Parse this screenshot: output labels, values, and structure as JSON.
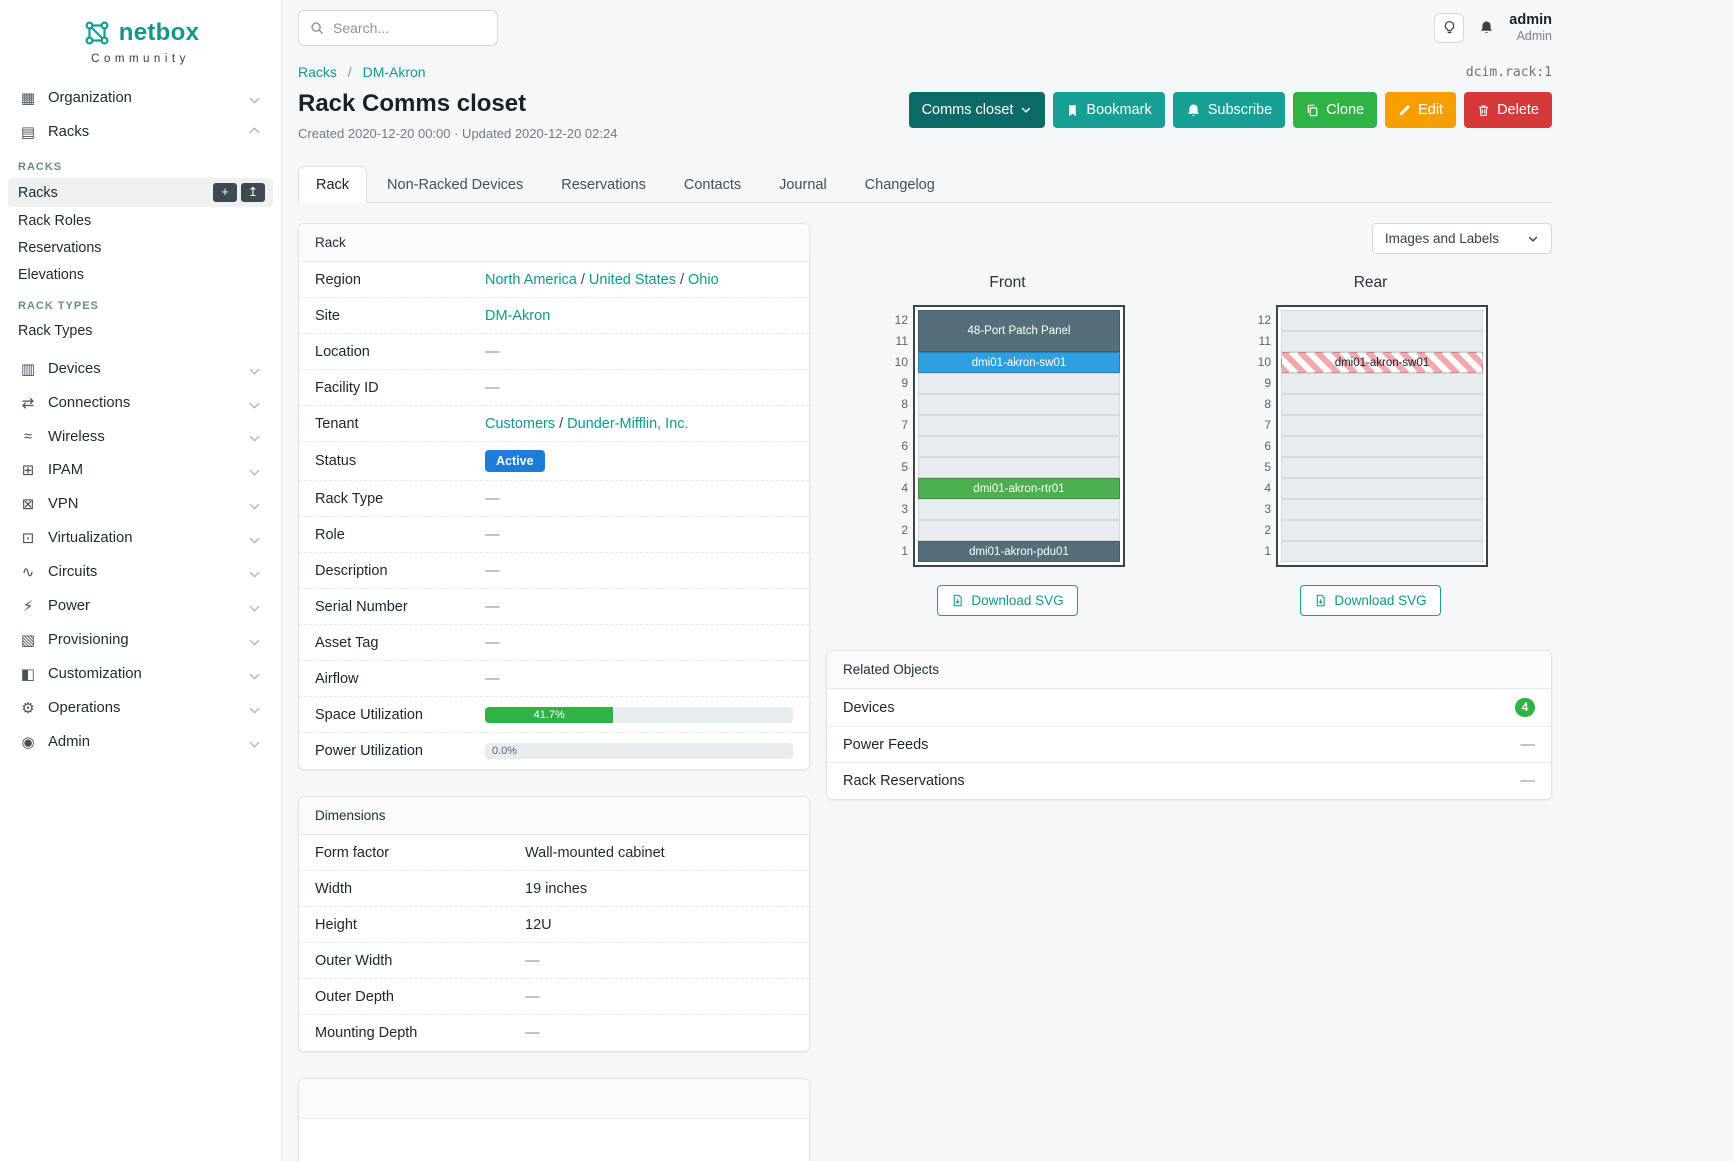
{
  "dash": "—",
  "colors": {
    "teal": "#169f94",
    "teal_dark": "#0c6b66",
    "green": "#2fb344",
    "orange": "#f59f00",
    "red": "#d63939",
    "blue": "#1c7cd6",
    "link": "#12978c",
    "stripe": "#f2a9ad"
  },
  "brand": {
    "name": "netbox",
    "community": "Community"
  },
  "topbar": {
    "search_placeholder": "Search...",
    "user": {
      "name": "admin",
      "role": "Admin"
    }
  },
  "sidebar": {
    "add_glyph": "+",
    "import_glyph": "↥",
    "items": [
      {
        "label": "Organization",
        "icon": "organization-icon",
        "glyph": "▦"
      },
      {
        "label": "Racks",
        "icon": "racks-icon",
        "glyph": "▤",
        "expanded": true,
        "children": [
          {
            "group": "RACKS"
          },
          {
            "label": "Racks",
            "active": true
          },
          {
            "label": "Rack Roles"
          },
          {
            "label": "Reservations"
          },
          {
            "label": "Elevations"
          },
          {
            "group": "RACK TYPES"
          },
          {
            "label": "Rack Types"
          }
        ]
      },
      {
        "label": "Devices",
        "icon": "devices-icon",
        "glyph": "▥"
      },
      {
        "label": "Connections",
        "icon": "connections-icon",
        "glyph": "⇄"
      },
      {
        "label": "Wireless",
        "icon": "wireless-icon",
        "glyph": "≈"
      },
      {
        "label": "IPAM",
        "icon": "ipam-icon",
        "glyph": "⊞"
      },
      {
        "label": "VPN",
        "icon": "vpn-icon",
        "glyph": "⊠"
      },
      {
        "label": "Virtualization",
        "icon": "virtualization-icon",
        "glyph": "⊡"
      },
      {
        "label": "Circuits",
        "icon": "circuits-icon",
        "glyph": "∿"
      },
      {
        "label": "Power",
        "icon": "power-icon",
        "glyph": "⚡"
      },
      {
        "label": "Provisioning",
        "icon": "provisioning-icon",
        "glyph": "▧"
      },
      {
        "label": "Customization",
        "icon": "customization-icon",
        "glyph": "◧"
      },
      {
        "label": "Operations",
        "icon": "operations-icon",
        "glyph": "⚙"
      },
      {
        "label": "Admin",
        "icon": "admin-icon",
        "glyph": "◉"
      }
    ]
  },
  "page": {
    "separator": "/",
    "breadcrumb": [
      "Racks",
      "DM-Akron"
    ],
    "object_id": "dcim.rack:1",
    "title": "Rack Comms closet",
    "meta": "Created 2020-12-20 00:00 · Updated 2020-12-20 02:24",
    "actions": [
      {
        "label": "Comms closet",
        "style": "dark-teal",
        "caret": true
      },
      {
        "label": "Bookmark",
        "style": "teal",
        "icon": "bookmark-icon"
      },
      {
        "label": "Subscribe",
        "style": "teal",
        "icon": "bell-icon"
      },
      {
        "label": "Clone",
        "style": "green",
        "icon": "copy-icon"
      },
      {
        "label": "Edit",
        "style": "orange",
        "icon": "pencil-icon"
      },
      {
        "label": "Delete",
        "style": "red",
        "icon": "trash-icon"
      }
    ],
    "tabs": [
      {
        "label": "Rack",
        "active": true
      },
      {
        "label": "Non-Racked Devices"
      },
      {
        "label": "Reservations"
      },
      {
        "label": "Contacts"
      },
      {
        "label": "Journal"
      },
      {
        "label": "Changelog"
      }
    ]
  },
  "rack_panel": {
    "title": "Rack",
    "rows": [
      {
        "label": "Region",
        "type": "links",
        "links": [
          "North America",
          "United States",
          "Ohio"
        ]
      },
      {
        "label": "Site",
        "type": "links",
        "links": [
          "DM-Akron"
        ]
      },
      {
        "label": "Location",
        "type": "dash"
      },
      {
        "label": "Facility ID",
        "type": "dash"
      },
      {
        "label": "Tenant",
        "type": "links",
        "links": [
          "Customers",
          "Dunder-Mifflin, Inc."
        ]
      },
      {
        "label": "Status",
        "type": "badge",
        "badge": {
          "label": "Active",
          "color": "#1c7cd6"
        }
      },
      {
        "label": "Rack Type",
        "type": "dash"
      },
      {
        "label": "Role",
        "type": "dash"
      },
      {
        "label": "Description",
        "type": "dash"
      },
      {
        "label": "Serial Number",
        "type": "dash"
      },
      {
        "label": "Asset Tag",
        "type": "dash"
      },
      {
        "label": "Airflow",
        "type": "dash"
      },
      {
        "label": "Space Utilization",
        "type": "progress",
        "percent": 41.7,
        "display": "41.7%",
        "color": "#2fb344"
      },
      {
        "label": "Power Utilization",
        "type": "progress",
        "percent": 0,
        "display": "0.0%"
      }
    ]
  },
  "dimensions_panel": {
    "title": "Dimensions",
    "rows": [
      {
        "label": "Form factor",
        "type": "text",
        "value": "Wall-mounted cabinet"
      },
      {
        "label": "Width",
        "type": "text",
        "value": "19 inches"
      },
      {
        "label": "Height",
        "type": "text",
        "value": "12U"
      },
      {
        "label": "Outer Width",
        "type": "dash"
      },
      {
        "label": "Outer Depth",
        "type": "dash"
      },
      {
        "label": "Mounting Depth",
        "type": "dash"
      }
    ]
  },
  "elevation": {
    "images_labels_button": "Images and Labels",
    "download_label": "Download SVG",
    "units": 12,
    "front": {
      "title": "Front",
      "devices": [
        {
          "name": "48-Port Patch Panel",
          "unit": 11,
          "u_height": 2,
          "color": "#546e7a"
        },
        {
          "name": "dmi01-akron-sw01",
          "unit": 10,
          "u_height": 1,
          "color": "#2f9fe0"
        },
        {
          "name": "dmi01-akron-rtr01",
          "unit": 4,
          "u_height": 1,
          "color": "#4caf50"
        },
        {
          "name": "dmi01-akron-pdu01",
          "unit": 1,
          "u_height": 1,
          "color": "#546e7a"
        }
      ]
    },
    "rear": {
      "title": "Rear",
      "devices": [
        {
          "name": "dmi01-akron-sw01",
          "unit": 10,
          "u_height": 1,
          "striped": true
        }
      ]
    }
  },
  "related": {
    "title": "Related Objects",
    "rows": [
      {
        "label": "Devices",
        "count": "4"
      },
      {
        "label": "Power Feeds"
      },
      {
        "label": "Rack Reservations"
      }
    ]
  }
}
